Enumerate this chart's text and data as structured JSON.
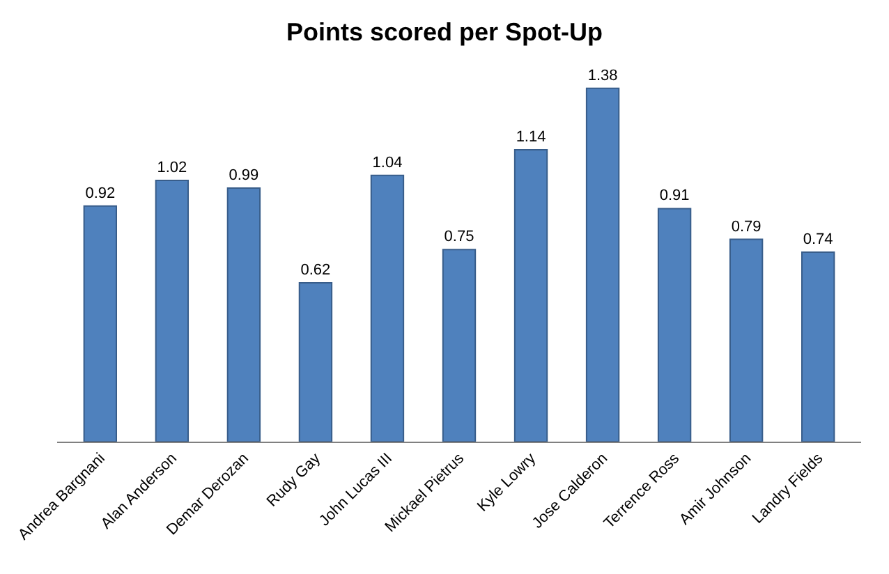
{
  "chart_data": {
    "type": "bar",
    "title": "Points scored per Spot-Up",
    "categories": [
      "Andrea Bargnani",
      "Alan Anderson",
      "Demar Derozan",
      "Rudy Gay",
      "John Lucas III",
      "Mickael Pietrus",
      "Kyle Lowry",
      "Jose Calderon",
      "Terrence Ross",
      "Amir Johnson",
      "Landry Fields"
    ],
    "values": [
      0.92,
      1.02,
      0.99,
      0.62,
      1.04,
      0.75,
      1.14,
      1.38,
      0.91,
      0.79,
      0.74
    ],
    "color": "#4f81bd",
    "data_labels": true,
    "tick_labels": "x"
  }
}
